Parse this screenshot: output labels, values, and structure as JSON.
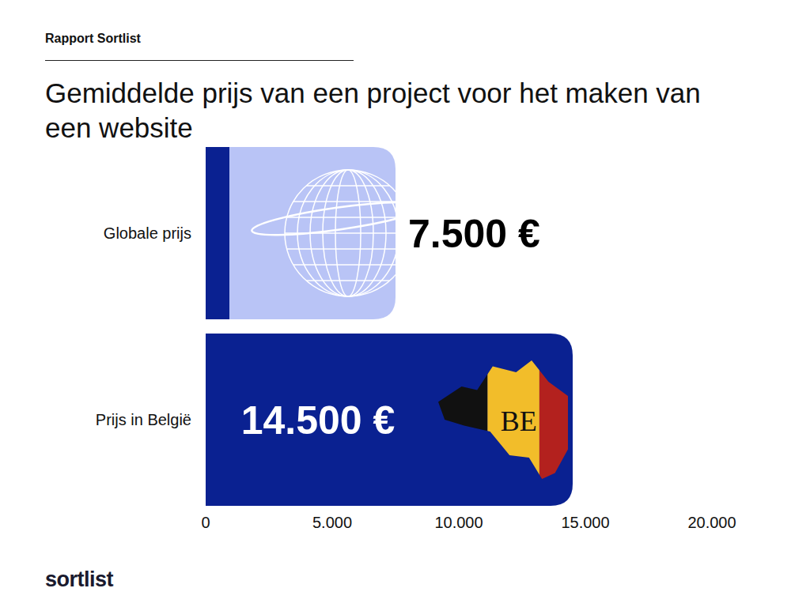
{
  "header": "Rapport Sortlist",
  "footer": "sortlist",
  "chart_data": {
    "type": "bar",
    "orientation": "horizontal",
    "title": "Gemiddelde prijs van een project voor het maken van een website",
    "categories": [
      "Globale prijs",
      "Prijs in België"
    ],
    "values": [
      7500,
      14500
    ],
    "value_labels": [
      "7.500 €",
      "14.500 €"
    ],
    "colors": [
      "#b9c4f6",
      "#0a2191"
    ],
    "data_labels": true,
    "xlim": [
      0,
      20000
    ],
    "xticks": [
      0,
      {
        "value": 5000,
        "label": "5.000"
      },
      {
        "value": 10000,
        "label": "10.000"
      },
      {
        "value": 15000,
        "label": "15.000"
      },
      {
        "value": 20000,
        "label": "20.000"
      }
    ],
    "grid": false,
    "annotations": [
      "BE"
    ]
  }
}
